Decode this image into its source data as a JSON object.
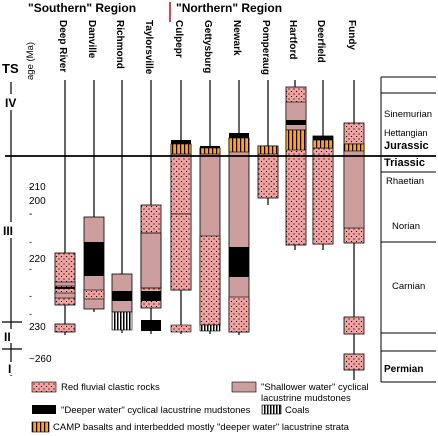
{
  "headers": {
    "southern": "\"Southern\" Region",
    "northern": "\"Northern\" Region"
  },
  "axes": {
    "ts_label": "TS",
    "age_label": "age (Ma)",
    "ticks": [
      "200",
      "210",
      "220",
      "230",
      "~260"
    ],
    "ts_units": [
      "IV",
      "III",
      "II",
      "I"
    ]
  },
  "basins": [
    "Deep River",
    "Danville",
    "Richmond",
    "Taylorsville",
    "Culpepr",
    "Gettysburg",
    "Newark",
    "Pomperaug",
    "Hartford",
    "Deerfield",
    "Fundy"
  ],
  "stages": {
    "sinemurian": "Sinemurian",
    "hettangian": "Hettangian",
    "jurassic": "Jurassic",
    "triassic": "Triassic",
    "rhaetian": "Rhaetian",
    "norian": "Norian",
    "carnian": "Carnian",
    "permian": "Permian"
  },
  "legend": {
    "red": "Red fluvial clastic rocks",
    "shallow_line1": "\"Shallower water\" cyclical",
    "shallow_line2": "lacustrine mudstones",
    "deep": "\"Deeper water\" cyclical lacustrine mudstones",
    "coals": "Coals",
    "camp": "CAMP basalts and interbedded mostly \"deeper water\" lacustrine strata"
  },
  "colors": {
    "red_fluvial": "#f4a3a3",
    "shallow": "#cc9e9e",
    "deep": "#000000",
    "camp": "#f5a623",
    "boundary": "#000000",
    "divider": "#d0021b"
  }
}
